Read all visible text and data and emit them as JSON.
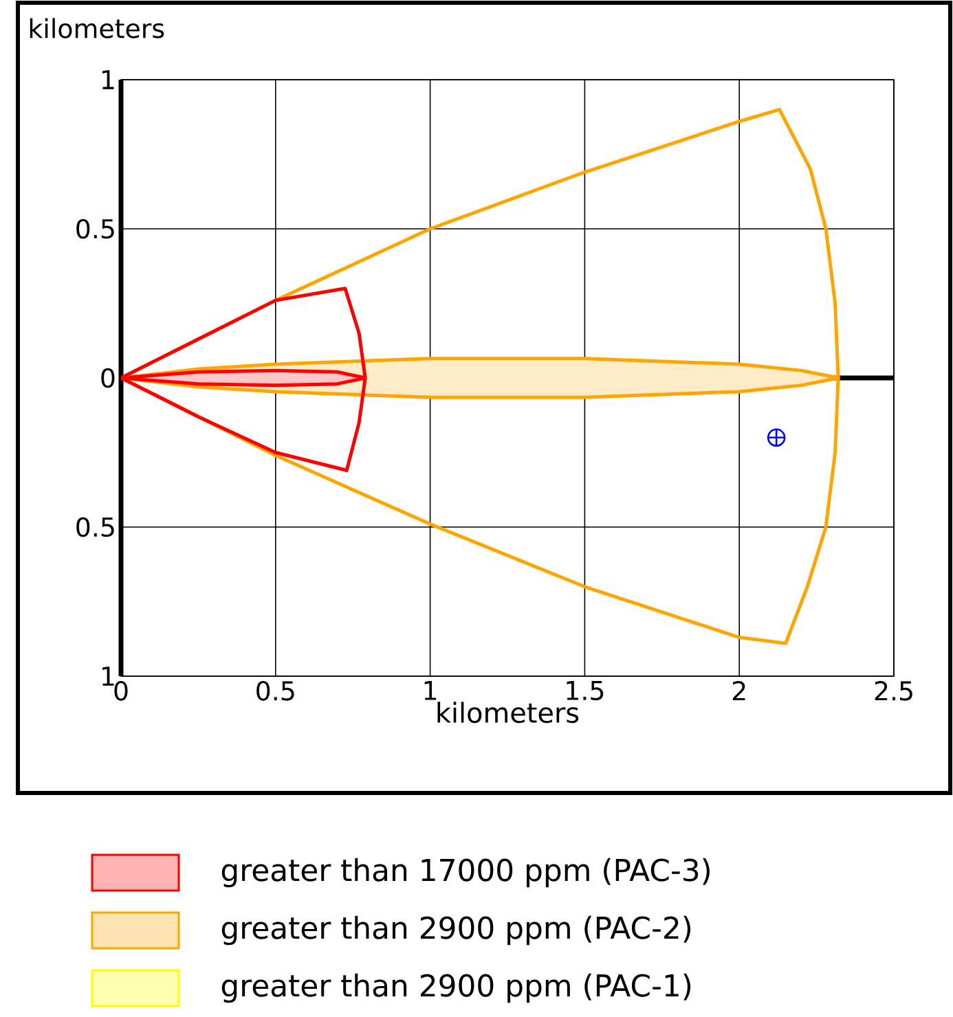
{
  "chart_data": {
    "type": "line",
    "xlabel": "kilometers",
    "ylabel": "kilometers",
    "xlim": [
      0,
      2.5
    ],
    "ylim": [
      -1,
      1
    ],
    "xticks": [
      0,
      0.5,
      1,
      1.5,
      2,
      2.5
    ],
    "yticks": [
      {
        "value": -1,
        "label": "1"
      },
      {
        "value": -0.5,
        "label": "0.5"
      },
      0,
      0.5,
      1
    ],
    "grid": true,
    "legend": "bottom",
    "series": [
      {
        "type": "area",
        "name": "greater than 17000 ppm (PAC-3)",
        "color": "#ff0000",
        "x": [
          0,
          0.25,
          0.5,
          0.7,
          0.79,
          0.7,
          0.5,
          0.25,
          0
        ],
        "values": [
          0,
          0.02,
          0.025,
          0.02,
          0,
          -0.02,
          -0.025,
          -0.02,
          0
        ]
      },
      {
        "type": "area",
        "name": "greater than 2900 ppm (PAC-2)",
        "color": "#ffa500",
        "x": [
          0,
          0.25,
          0.5,
          1,
          1.5,
          2,
          2.2,
          2.32,
          2.2,
          2,
          1.5,
          1,
          0.5,
          0.25,
          0
        ],
        "values": [
          0,
          0.03,
          0.046,
          0.065,
          0.065,
          0.046,
          0.025,
          0,
          -0.025,
          -0.046,
          -0.065,
          -0.065,
          -0.046,
          -0.03,
          0
        ]
      },
      {
        "type": "area",
        "name": "greater than 2900 ppm (PAC-1)",
        "color": "#ffff00"
      },
      {
        "color": "#ff0000",
        "x": [
          0,
          0.25,
          0.5,
          0.725,
          0.77,
          0.79,
          null,
          0,
          0.25,
          0.5,
          0.73,
          0.77,
          0.79
        ],
        "values": [
          0,
          0.13,
          0.26,
          0.3,
          0.15,
          0,
          null,
          0,
          -0.13,
          -0.25,
          -0.31,
          -0.15,
          0
        ]
      },
      {
        "color": "#ffa500",
        "x": [
          0,
          0.5,
          1,
          1.5,
          2,
          2.13,
          2.23,
          2.28,
          2.31,
          2.32,
          null,
          0,
          0.5,
          1,
          1.5,
          2,
          2.15,
          2.22,
          2.28,
          2.31,
          2.32
        ],
        "values": [
          0,
          0.26,
          0.5,
          0.69,
          0.86,
          0.9,
          0.7,
          0.5,
          0.25,
          0,
          null,
          0,
          -0.26,
          -0.49,
          -0.7,
          -0.87,
          -0.89,
          -0.7,
          -0.5,
          -0.25,
          0
        ]
      },
      {
        "type": "scatter",
        "color": "#0000ff",
        "x": [
          2.12
        ],
        "values": [
          -0.2
        ]
      }
    ]
  }
}
